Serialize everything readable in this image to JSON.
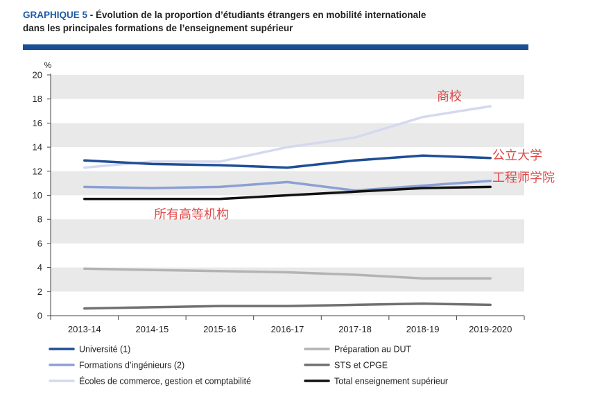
{
  "figure": {
    "tag": "GRAPHIQUE 5",
    "title_line1": "- Évolution de la proportion d’étudiants étrangers en mobilité internationale",
    "title_line2": "dans les principales formations de l’enseignement supérieur"
  },
  "annotations": {
    "commerce": "商校",
    "universite": "公立大学",
    "ingenieurs": "工程师学院",
    "total": "所有高等机构"
  },
  "chart_data": {
    "type": "line",
    "x": [
      "2013-14",
      "2014-15",
      "2015-16",
      "2016-17",
      "2017-18",
      "2018-19",
      "2019-2020"
    ],
    "ylabel": "%",
    "ylim": [
      0,
      20
    ],
    "yticks": [
      0,
      2,
      4,
      6,
      8,
      10,
      12,
      14,
      16,
      18,
      20
    ],
    "grid": "alternating horizontal bands",
    "legend_position": "bottom",
    "series": [
      {
        "name": "Université (1)",
        "color": "#1f4e96",
        "values": [
          12.9,
          12.6,
          12.5,
          12.3,
          12.9,
          13.3,
          13.1
        ]
      },
      {
        "name": "Préparation au DUT",
        "color": "#b3b3b3",
        "values": [
          3.9,
          3.8,
          3.7,
          3.6,
          3.4,
          3.1,
          3.1
        ]
      },
      {
        "name": "Formations d’ingénieurs (2)",
        "color": "#8ba0d4",
        "values": [
          10.7,
          10.6,
          10.7,
          11.1,
          10.4,
          10.8,
          11.2
        ]
      },
      {
        "name": "STS et CPGE",
        "color": "#707070",
        "values": [
          0.6,
          0.7,
          0.8,
          0.8,
          0.9,
          1.0,
          0.9
        ]
      },
      {
        "name": "Écoles de commerce, gestion et comptabilité",
        "color": "#d5d9ef",
        "values": [
          12.3,
          12.8,
          12.8,
          14.0,
          14.8,
          16.5,
          17.4
        ]
      },
      {
        "name": "Total enseignement supérieur",
        "color": "#111111",
        "values": [
          9.7,
          9.7,
          9.7,
          10.0,
          10.3,
          10.6,
          10.7
        ]
      }
    ]
  }
}
